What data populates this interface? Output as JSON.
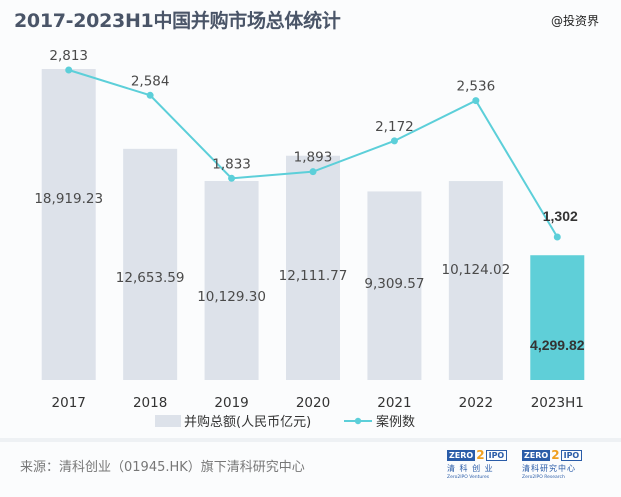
{
  "header": {
    "title": "2017-2023H1中国并购市场总体统计",
    "watermark": "@投资界"
  },
  "chart_data": {
    "type": "bar+line",
    "title": "2017-2023H1中国并购市场总体统计",
    "categories": [
      "2017",
      "2018",
      "2019",
      "2020",
      "2021",
      "2022",
      "2023H1"
    ],
    "series": [
      {
        "name": "并购总额(人民币亿元)",
        "type": "bar",
        "values": [
          18919.23,
          12653.59,
          10129.3,
          12111.77,
          9309.57,
          10124.02,
          4299.82
        ],
        "labels": [
          "18,919.23",
          "12,653.59",
          "10,129.30",
          "12,111.77",
          "9,309.57",
          "10,124.02",
          "4,299.82"
        ],
        "color": "#dde2ea",
        "highlight_color": "#5fcfd8",
        "highlight_index": 6
      },
      {
        "name": "案例数",
        "type": "line",
        "values": [
          2813,
          2584,
          1833,
          1893,
          2172,
          2536,
          1302
        ],
        "labels": [
          "2,813",
          "2,584",
          "1,833",
          "1,893",
          "2,172",
          "2,536",
          "1,302"
        ],
        "color": "#5ccfd9"
      }
    ],
    "legend": [
      "并购总额(人民币亿元)",
      "案例数"
    ],
    "legend_position": "bottom",
    "grid": false,
    "xlabel": "",
    "ylabel": ""
  },
  "footer": {
    "source": "来源：清科创业（01945.HK）旗下清科研究中心",
    "logos": [
      {
        "badge_left": "ZERO",
        "badge_mid": "2",
        "badge_right": "IPO",
        "cn": "清 科 创 业",
        "en": "Zero2IPO Ventures"
      },
      {
        "badge_left": "ZERO",
        "badge_mid": "2",
        "badge_right": "IPO",
        "cn": "清科研究中心",
        "en": "Zero2IPO Research"
      }
    ]
  }
}
